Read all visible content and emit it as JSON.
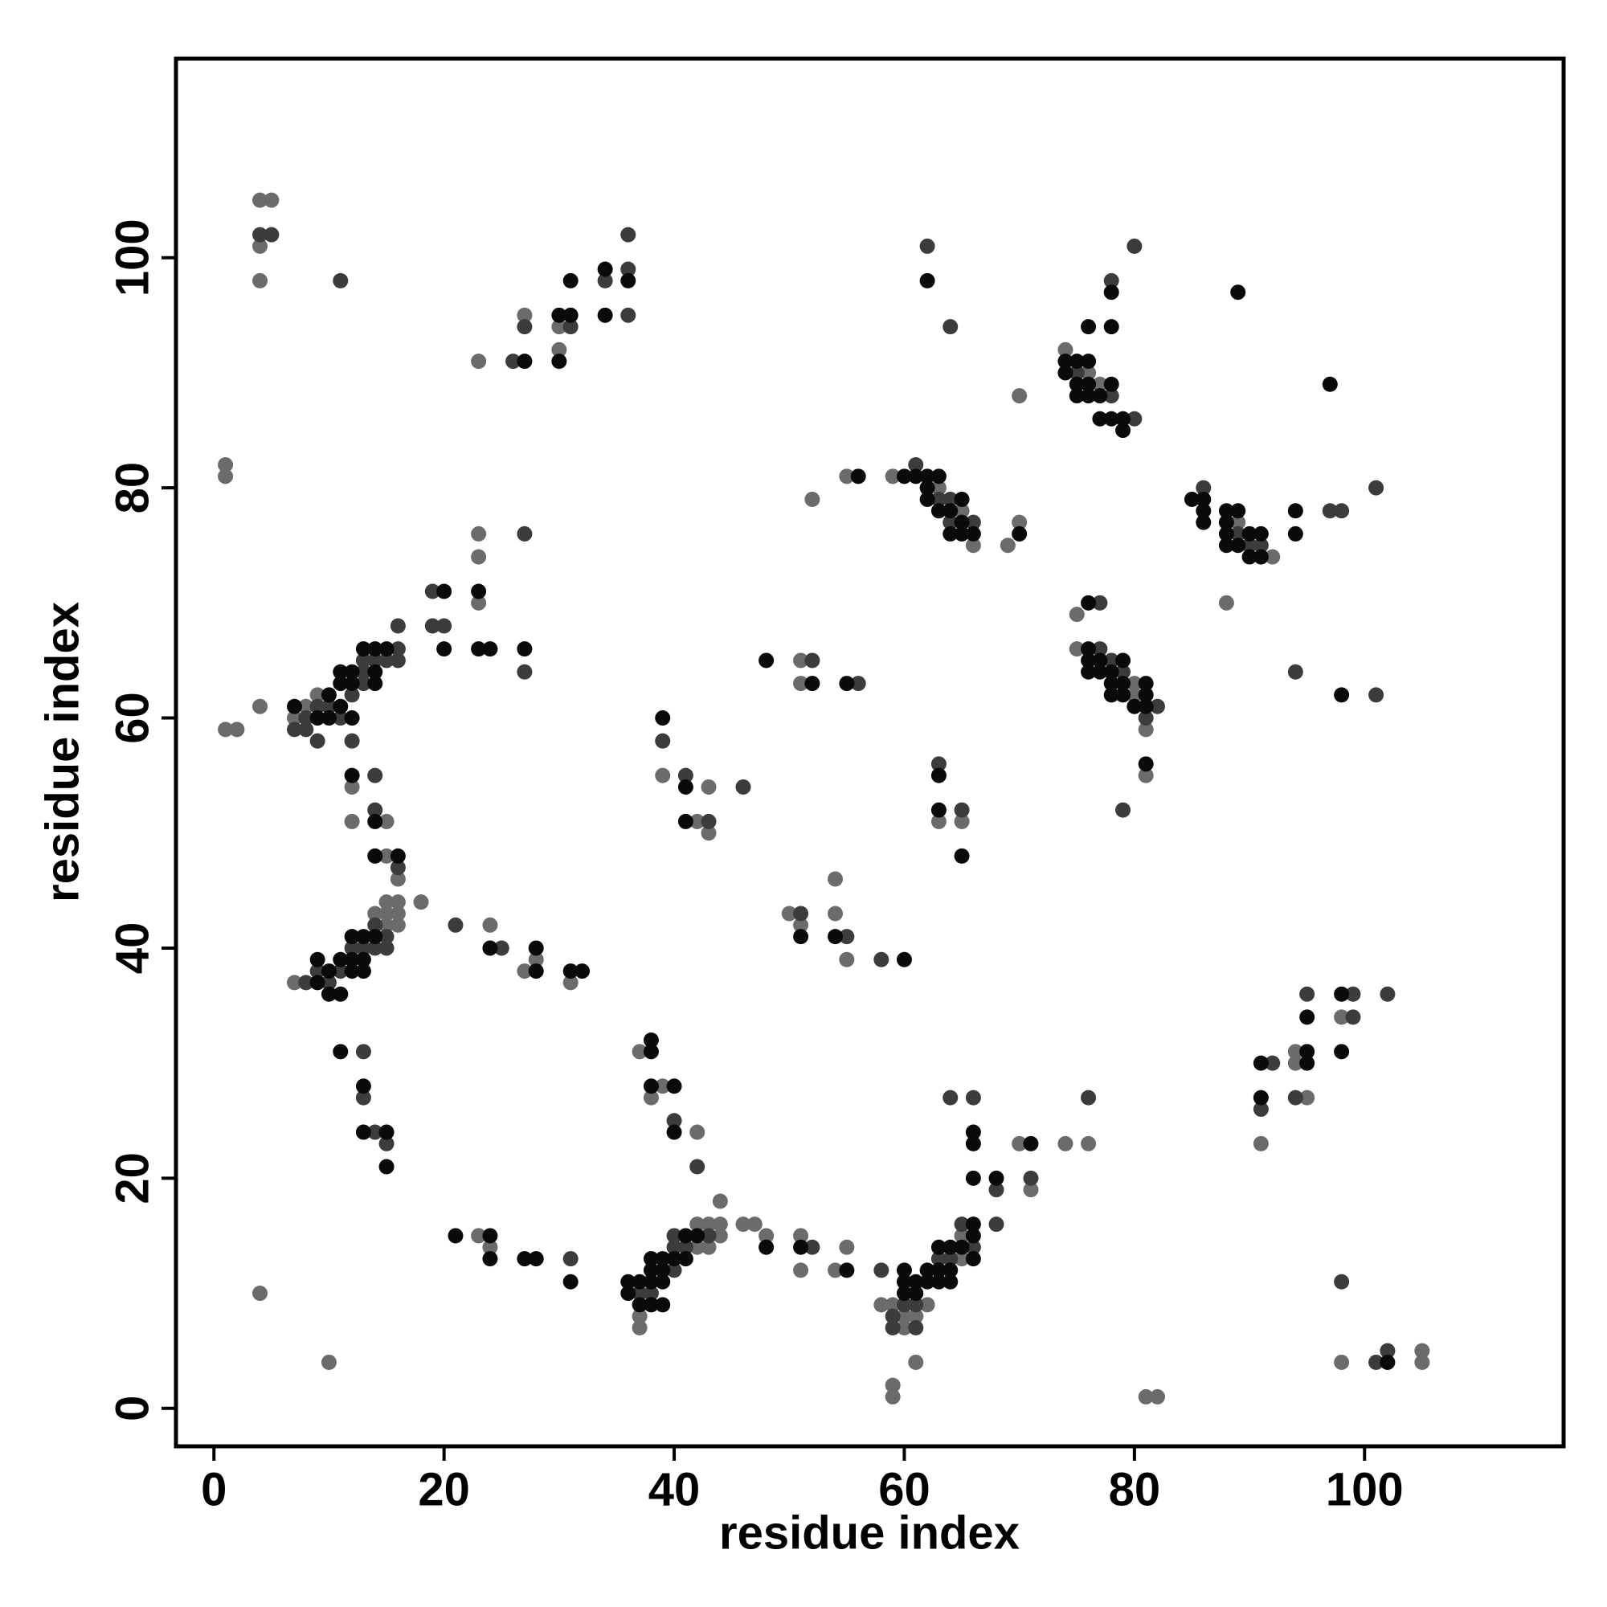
{
  "chart_data": {
    "type": "scatter",
    "x_label": "residue index",
    "y_label": "residue index",
    "xlim": [
      -3.3,
      117.3
    ],
    "ylim": [
      -3.3,
      117.3
    ],
    "xticks": [
      0,
      20,
      40,
      60,
      80,
      100
    ],
    "yticks": [
      0,
      20,
      40,
      60,
      80,
      100
    ],
    "grid": false,
    "series": [
      {
        "color": "#6b6b6b",
        "x": [
          4,
          5,
          4,
          4,
          1,
          1,
          1,
          2,
          4,
          23,
          27,
          30,
          30,
          7,
          8,
          9,
          23,
          23,
          23,
          12,
          12,
          15,
          15,
          16,
          7,
          14,
          15,
          15,
          15,
          16,
          16,
          16,
          18,
          24,
          27,
          28,
          31,
          4,
          10,
          23,
          24,
          37,
          37,
          42,
          42,
          43,
          43,
          44,
          44,
          44,
          46,
          47,
          48,
          51,
          51,
          54,
          55,
          58,
          37,
          38,
          39,
          42,
          59,
          60,
          60,
          61,
          62,
          65,
          65,
          59,
          59,
          61,
          70,
          71,
          74,
          76,
          39,
          42,
          43,
          43,
          51,
          51,
          50,
          51,
          54,
          54,
          55,
          63,
          65,
          52,
          55,
          59,
          63,
          65,
          66,
          69,
          70,
          70,
          74,
          76,
          77,
          89,
          92,
          75,
          75,
          80,
          80,
          81,
          81,
          88,
          91,
          94,
          94,
          95,
          98,
          98,
          105,
          105,
          81,
          82
        ],
        "y": [
          105,
          105,
          101,
          98,
          82,
          81,
          59,
          59,
          61,
          91,
          95,
          92,
          94,
          60,
          61,
          62,
          76,
          74,
          70,
          54,
          51,
          51,
          48,
          46,
          37,
          43,
          44,
          43,
          42,
          44,
          43,
          42,
          44,
          42,
          38,
          39,
          37,
          10,
          4,
          15,
          14,
          8,
          7,
          16,
          14,
          16,
          14,
          16,
          15,
          18,
          16,
          16,
          15,
          15,
          12,
          12,
          14,
          9,
          31,
          27,
          28,
          24,
          9,
          8,
          7,
          8,
          9,
          15,
          13,
          2,
          1,
          4,
          23,
          19,
          23,
          23,
          55,
          51,
          54,
          50,
          65,
          63,
          43,
          42,
          46,
          43,
          39,
          51,
          51,
          79,
          81,
          81,
          80,
          78,
          75,
          75,
          77,
          88,
          92,
          90,
          89,
          77,
          74,
          69,
          66,
          63,
          62,
          59,
          55,
          70,
          23,
          31,
          30,
          27,
          34,
          4,
          5,
          4,
          1,
          1
        ]
      },
      {
        "color": "#3c3c3c",
        "x": [
          4,
          5,
          11,
          26,
          27,
          31,
          34,
          36,
          36,
          36,
          7,
          8,
          8,
          9,
          9,
          10,
          11,
          12,
          12,
          13,
          13,
          13,
          14,
          15,
          16,
          16,
          16,
          19,
          19,
          20,
          27,
          27,
          14,
          14,
          16,
          8,
          9,
          10,
          11,
          12,
          13,
          14,
          14,
          15,
          15,
          21,
          25,
          13,
          13,
          14,
          15,
          31,
          37,
          38,
          40,
          40,
          40,
          41,
          43,
          52,
          58,
          40,
          42,
          59,
          59,
          60,
          61,
          61,
          63,
          64,
          65,
          66,
          68,
          64,
          66,
          68,
          71,
          76,
          39,
          41,
          43,
          46,
          52,
          56,
          51,
          55,
          58,
          63,
          65,
          61,
          63,
          64,
          64,
          66,
          62,
          64,
          80,
          75,
          78,
          78,
          80,
          86,
          89,
          90,
          91,
          97,
          98,
          101,
          77,
          77,
          78,
          79,
          81,
          82,
          79,
          94,
          101,
          92,
          91,
          94,
          95,
          99,
          99,
          102,
          98,
          101,
          102
        ],
        "y": [
          102,
          102,
          98,
          91,
          94,
          94,
          98,
          102,
          99,
          95,
          59,
          60,
          59,
          61,
          58,
          61,
          60,
          62,
          58,
          65,
          64,
          63,
          65,
          65,
          68,
          66,
          65,
          71,
          68,
          68,
          76,
          64,
          55,
          52,
          47,
          37,
          38,
          37,
          38,
          40,
          40,
          42,
          40,
          41,
          40,
          42,
          40,
          31,
          27,
          24,
          23,
          13,
          10,
          10,
          15,
          14,
          12,
          14,
          15,
          14,
          12,
          25,
          21,
          8,
          7,
          9,
          9,
          7,
          13,
          13,
          16,
          14,
          16,
          27,
          27,
          19,
          20,
          27,
          58,
          55,
          51,
          54,
          65,
          63,
          43,
          41,
          39,
          56,
          52,
          82,
          79,
          79,
          77,
          77,
          101,
          94,
          101,
          90,
          98,
          88,
          86,
          80,
          76,
          75,
          75,
          78,
          78,
          80,
          70,
          66,
          65,
          64,
          60,
          61,
          52,
          64,
          62,
          30,
          26,
          27,
          36,
          36,
          34,
          36,
          11,
          4,
          5
        ]
      },
      {
        "color": "#0a0a0a",
        "x": [
          27,
          30,
          30,
          31,
          31,
          34,
          34,
          36,
          7,
          9,
          10,
          10,
          11,
          11,
          11,
          12,
          12,
          12,
          13,
          14,
          14,
          14,
          15,
          20,
          20,
          23,
          23,
          24,
          27,
          12,
          14,
          14,
          16,
          9,
          9,
          10,
          10,
          11,
          11,
          12,
          12,
          12,
          13,
          13,
          13,
          14,
          24,
          28,
          28,
          31,
          32,
          11,
          13,
          13,
          15,
          15,
          21,
          24,
          24,
          27,
          28,
          31,
          36,
          36,
          37,
          37,
          38,
          38,
          38,
          38,
          39,
          39,
          39,
          39,
          40,
          41,
          41,
          42,
          48,
          51,
          55,
          38,
          38,
          38,
          40,
          40,
          60,
          60,
          60,
          61,
          61,
          62,
          62,
          63,
          63,
          63,
          64,
          64,
          64,
          65,
          66,
          66,
          66,
          66,
          66,
          66,
          68,
          71,
          39,
          41,
          41,
          48,
          52,
          55,
          51,
          54,
          60,
          63,
          63,
          65,
          56,
          60,
          61,
          62,
          62,
          62,
          63,
          63,
          64,
          64,
          65,
          65,
          65,
          66,
          70,
          62,
          74,
          74,
          75,
          75,
          75,
          76,
          76,
          76,
          76,
          77,
          78,
          78,
          78,
          77,
          78,
          79,
          79,
          85,
          86,
          86,
          86,
          88,
          88,
          88,
          88,
          89,
          89,
          89,
          90,
          90,
          91,
          91,
          94,
          94,
          97,
          76,
          76,
          76,
          76,
          77,
          77,
          78,
          78,
          78,
          79,
          79,
          79,
          80,
          81,
          81,
          81,
          81,
          98,
          91,
          91,
          95,
          95,
          95,
          98,
          98,
          102
        ],
        "y": [
          91,
          91,
          95,
          95,
          98,
          99,
          95,
          98,
          61,
          60,
          62,
          60,
          64,
          63,
          61,
          64,
          63,
          60,
          66,
          66,
          64,
          63,
          66,
          71,
          66,
          71,
          66,
          66,
          66,
          55,
          51,
          48,
          48,
          39,
          37,
          38,
          36,
          39,
          36,
          41,
          39,
          38,
          41,
          39,
          38,
          41,
          40,
          40,
          38,
          38,
          38,
          31,
          28,
          24,
          24,
          21,
          15,
          15,
          13,
          13,
          13,
          11,
          11,
          10,
          11,
          9,
          13,
          12,
          11,
          9,
          13,
          12,
          11,
          9,
          13,
          15,
          13,
          15,
          14,
          14,
          12,
          32,
          31,
          28,
          28,
          24,
          12,
          11,
          10,
          11,
          10,
          12,
          11,
          14,
          12,
          11,
          14,
          12,
          11,
          14,
          16,
          15,
          13,
          24,
          23,
          20,
          20,
          23,
          60,
          54,
          51,
          65,
          63,
          63,
          41,
          41,
          39,
          55,
          52,
          48,
          81,
          81,
          81,
          81,
          80,
          79,
          81,
          78,
          78,
          76,
          79,
          77,
          76,
          76,
          76,
          98,
          91,
          90,
          91,
          89,
          88,
          94,
          91,
          89,
          88,
          88,
          97,
          94,
          89,
          86,
          86,
          86,
          85,
          79,
          79,
          78,
          77,
          78,
          77,
          76,
          75,
          97,
          78,
          75,
          76,
          74,
          76,
          74,
          78,
          76,
          89,
          70,
          66,
          65,
          64,
          65,
          64,
          64,
          63,
          62,
          65,
          63,
          62,
          61,
          63,
          62,
          61,
          56,
          62,
          30,
          27,
          34,
          31,
          30,
          36,
          31,
          4
        ]
      }
    ]
  }
}
